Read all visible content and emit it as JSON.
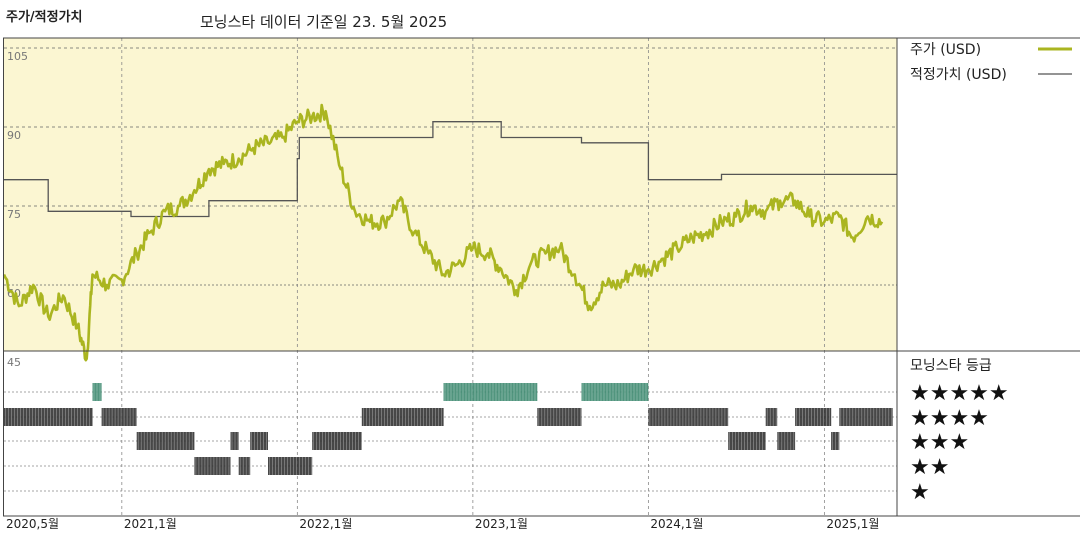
{
  "header": {
    "title": "주가/적정가치",
    "subtitle": "모닝스타 데이터 기준일 23. 5월 2025"
  },
  "colors": {
    "price_line": "#aab520",
    "fair_value_line": "#555555",
    "plot_background": "#fbf6d2",
    "rating_high": "#3e8a70",
    "rating_bar": "#333333"
  },
  "legend": {
    "price": "주가 (USD)",
    "fair_value": "적정가치 (USD)",
    "rating_title": "모닝스타 등급"
  },
  "chart_data": [
    {
      "type": "line",
      "ylim": [
        45,
        105
      ],
      "yticks": [
        45,
        60,
        75,
        90,
        105
      ],
      "ytick_labels": [
        "45",
        "60",
        "75",
        "90",
        "105"
      ],
      "xlim": [
        "2020-05-01",
        "2025-06-01"
      ],
      "xticks": [
        "2020-05-01",
        "2021-01-01",
        "2022-01-01",
        "2023-01-01",
        "2024-01-01",
        "2025-01-01"
      ],
      "xtick_labels": [
        "2020,5월",
        "2021,1월",
        "2022,1월",
        "2023,1월",
        "2024,1월",
        "2025,1월"
      ],
      "grid": true,
      "legend_position": "right",
      "series": [
        {
          "name": "주가 (USD)",
          "x": [
            "2020-05-01",
            "2020-06-01",
            "2020-07-01",
            "2020-08-01",
            "2020-09-01",
            "2020-10-01",
            "2020-10-20",
            "2020-11-01",
            "2020-12-01",
            "2021-01-01",
            "2021-02-01",
            "2021-03-01",
            "2021-04-01",
            "2021-05-01",
            "2021-06-01",
            "2021-07-01",
            "2021-08-01",
            "2021-09-01",
            "2021-10-01",
            "2021-11-01",
            "2021-12-01",
            "2022-01-01",
            "2022-02-01",
            "2022-03-01",
            "2022-04-01",
            "2022-05-01",
            "2022-06-01",
            "2022-07-01",
            "2022-08-01",
            "2022-09-01",
            "2022-10-01",
            "2022-11-01",
            "2022-12-01",
            "2023-01-01",
            "2023-02-01",
            "2023-03-01",
            "2023-04-01",
            "2023-05-01",
            "2023-06-01",
            "2023-07-01",
            "2023-08-01",
            "2023-09-01",
            "2023-10-01",
            "2023-11-01",
            "2023-12-01",
            "2024-01-01",
            "2024-02-01",
            "2024-03-01",
            "2024-04-01",
            "2024-05-01",
            "2024-06-01",
            "2024-07-01",
            "2024-08-01",
            "2024-09-01",
            "2024-10-01",
            "2024-11-01",
            "2024-12-01",
            "2025-01-01",
            "2025-02-01",
            "2025-03-01",
            "2025-04-01",
            "2025-05-01"
          ],
          "values": [
            62,
            56,
            60,
            54,
            58,
            52,
            46,
            62,
            60,
            61,
            66,
            70,
            74,
            75,
            78,
            82,
            83,
            84,
            86,
            87,
            88,
            91,
            92,
            93,
            82,
            74,
            72,
            72,
            76,
            70,
            66,
            62,
            64,
            67,
            66,
            63,
            59,
            64,
            66,
            67,
            62,
            56,
            60,
            60,
            63,
            63,
            65,
            67,
            69,
            70,
            72,
            73,
            75,
            74,
            76,
            76,
            73,
            72,
            73,
            69,
            73,
            72
          ]
        },
        {
          "name": "적정가치 (USD)",
          "x": [
            "2020-05-01",
            "2020-08-01",
            "2020-08-01",
            "2021-01-20",
            "2021-01-20",
            "2021-07-01",
            "2021-07-01",
            "2022-01-01",
            "2022-01-01",
            "2022-01-05",
            "2022-01-05",
            "2022-10-10",
            "2022-10-10",
            "2023-03-01",
            "2023-03-01",
            "2023-08-15",
            "2023-08-15",
            "2024-01-01",
            "2024-01-01",
            "2024-06-01",
            "2024-06-01",
            "2025-06-01"
          ],
          "values": [
            80,
            80,
            74,
            74,
            73,
            73,
            76,
            76,
            84,
            84,
            88,
            88,
            91,
            91,
            88,
            88,
            87,
            87,
            80,
            80,
            81,
            81
          ]
        }
      ]
    },
    {
      "type": "timeline",
      "rows": [
        "★★★★★",
        "★★★★",
        "★★★",
        "★★",
        "★"
      ],
      "segments": [
        {
          "stars": 5,
          "start": "2020-11-01",
          "end": "2020-11-20"
        },
        {
          "stars": 4,
          "start": "2020-05-01",
          "end": "2020-11-01"
        },
        {
          "stars": 4,
          "start": "2020-11-20",
          "end": "2021-02-01"
        },
        {
          "stars": 3,
          "start": "2021-02-01",
          "end": "2021-06-01"
        },
        {
          "stars": 2,
          "start": "2021-06-01",
          "end": "2021-08-15"
        },
        {
          "stars": 3,
          "start": "2021-08-15",
          "end": "2021-09-01"
        },
        {
          "stars": 2,
          "start": "2021-09-01",
          "end": "2021-09-25"
        },
        {
          "stars": 3,
          "start": "2021-09-25",
          "end": "2021-11-01"
        },
        {
          "stars": 2,
          "start": "2021-11-01",
          "end": "2022-02-01"
        },
        {
          "stars": 3,
          "start": "2022-02-01",
          "end": "2022-05-15"
        },
        {
          "stars": 4,
          "start": "2022-05-15",
          "end": "2022-11-01"
        },
        {
          "stars": 5,
          "start": "2022-11-01",
          "end": "2023-05-15"
        },
        {
          "stars": 4,
          "start": "2023-05-15",
          "end": "2023-08-15"
        },
        {
          "stars": 5,
          "start": "2023-08-15",
          "end": "2024-01-01"
        },
        {
          "stars": 4,
          "start": "2024-01-01",
          "end": "2024-06-15"
        },
        {
          "stars": 3,
          "start": "2024-06-15",
          "end": "2024-09-01"
        },
        {
          "stars": 4,
          "start": "2024-09-01",
          "end": "2024-09-25"
        },
        {
          "stars": 3,
          "start": "2024-09-25",
          "end": "2024-11-01"
        },
        {
          "stars": 4,
          "start": "2024-11-01",
          "end": "2025-01-15"
        },
        {
          "stars": 3,
          "start": "2025-01-15",
          "end": "2025-02-01"
        },
        {
          "stars": 4,
          "start": "2025-02-01",
          "end": "2025-05-23"
        }
      ]
    }
  ]
}
